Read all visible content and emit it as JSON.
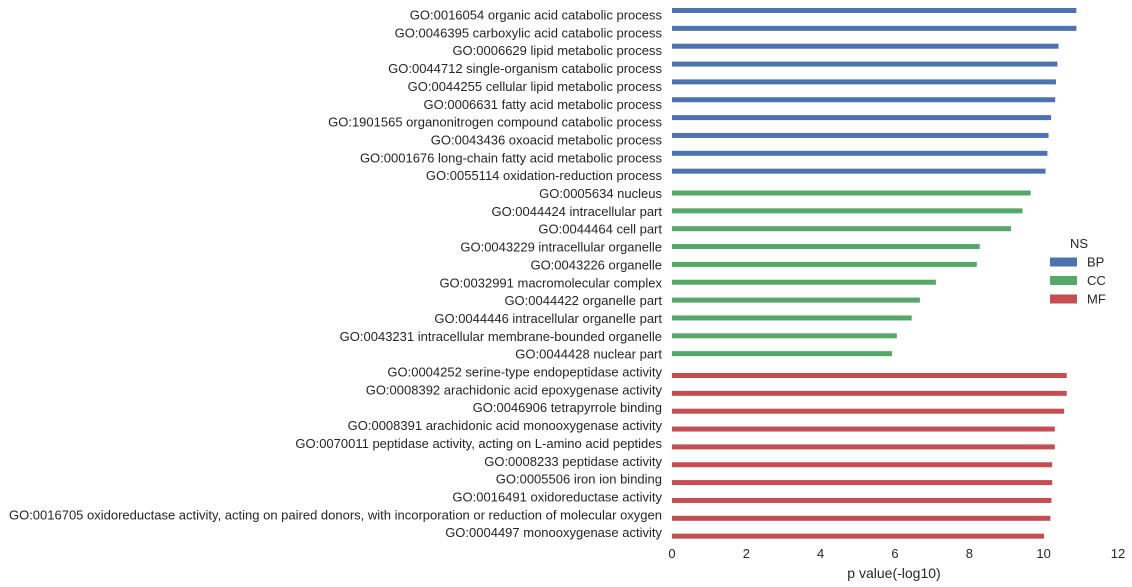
{
  "chart_data": {
    "type": "bar",
    "orientation": "horizontal",
    "xlabel": "p value(-log10)",
    "ylabel": "",
    "xlim": [
      0,
      12
    ],
    "xticks": [
      0,
      2,
      4,
      6,
      8,
      10,
      12
    ],
    "grid": false,
    "legend": {
      "title": "NS",
      "placement": "right",
      "entries": [
        {
          "name": "BP",
          "color": "#4c72b0"
        },
        {
          "name": "CC",
          "color": "#55a868"
        },
        {
          "name": "MF",
          "color": "#c44e52"
        }
      ]
    },
    "bars": [
      {
        "label": "GO:0016054 organic acid catabolic process",
        "ns": "BP",
        "value": 10.88
      },
      {
        "label": "GO:0046395 carboxylic acid catabolic process",
        "ns": "BP",
        "value": 10.88
      },
      {
        "label": "GO:0006629 lipid metabolic process",
        "ns": "BP",
        "value": 10.4
      },
      {
        "label": "GO:0044712 single-organism catabolic process",
        "ns": "BP",
        "value": 10.37
      },
      {
        "label": "GO:0044255 cellular lipid metabolic process",
        "ns": "BP",
        "value": 10.33
      },
      {
        "label": "GO:0006631 fatty acid metabolic process",
        "ns": "BP",
        "value": 10.31
      },
      {
        "label": "GO:1901565 organonitrogen compound catabolic process",
        "ns": "BP",
        "value": 10.2
      },
      {
        "label": "GO:0043436 oxoacid metabolic process",
        "ns": "BP",
        "value": 10.13
      },
      {
        "label": "GO:0001676 long-chain fatty acid metabolic process",
        "ns": "BP",
        "value": 10.1
      },
      {
        "label": "GO:0055114 oxidation-reduction process",
        "ns": "BP",
        "value": 10.05
      },
      {
        "label": "GO:0005634 nucleus",
        "ns": "CC",
        "value": 9.65
      },
      {
        "label": "GO:0044424 intracellular part",
        "ns": "CC",
        "value": 9.43
      },
      {
        "label": "GO:0044464 cell part",
        "ns": "CC",
        "value": 9.12
      },
      {
        "label": "GO:0043229 intracellular organelle",
        "ns": "CC",
        "value": 8.28
      },
      {
        "label": "GO:0043226 organelle",
        "ns": "CC",
        "value": 8.2
      },
      {
        "label": "GO:0032991 macromolecular complex",
        "ns": "CC",
        "value": 7.1
      },
      {
        "label": "GO:0044422 organelle part",
        "ns": "CC",
        "value": 6.67
      },
      {
        "label": "GO:0044446 intracellular organelle part",
        "ns": "CC",
        "value": 6.45
      },
      {
        "label": "GO:0043231 intracellular membrane-bounded organelle",
        "ns": "CC",
        "value": 6.05
      },
      {
        "label": "GO:0044428 nuclear part",
        "ns": "CC",
        "value": 5.92
      },
      {
        "label": "GO:0004252 serine-type endopeptidase activity",
        "ns": "MF",
        "value": 10.62
      },
      {
        "label": "GO:0008392 arachidonic acid epoxygenase activity",
        "ns": "MF",
        "value": 10.62
      },
      {
        "label": "GO:0046906 tetrapyrrole binding",
        "ns": "MF",
        "value": 10.55
      },
      {
        "label": "GO:0008391 arachidonic acid monooxygenase activity",
        "ns": "MF",
        "value": 10.3
      },
      {
        "label": "GO:0070011 peptidase activity, acting on L-amino acid peptides",
        "ns": "MF",
        "value": 10.3
      },
      {
        "label": "GO:0008233 peptidase activity",
        "ns": "MF",
        "value": 10.23
      },
      {
        "label": "GO:0005506 iron ion binding",
        "ns": "MF",
        "value": 10.23
      },
      {
        "label": "GO:0016491 oxidoreductase activity",
        "ns": "MF",
        "value": 10.21
      },
      {
        "label": "GO:0016705 oxidoreductase activity, acting on paired donors, with incorporation or reduction of molecular oxygen",
        "ns": "MF",
        "value": 10.18
      },
      {
        "label": "GO:0004497 monooxygenase activity",
        "ns": "MF",
        "value": 10.01
      }
    ]
  }
}
